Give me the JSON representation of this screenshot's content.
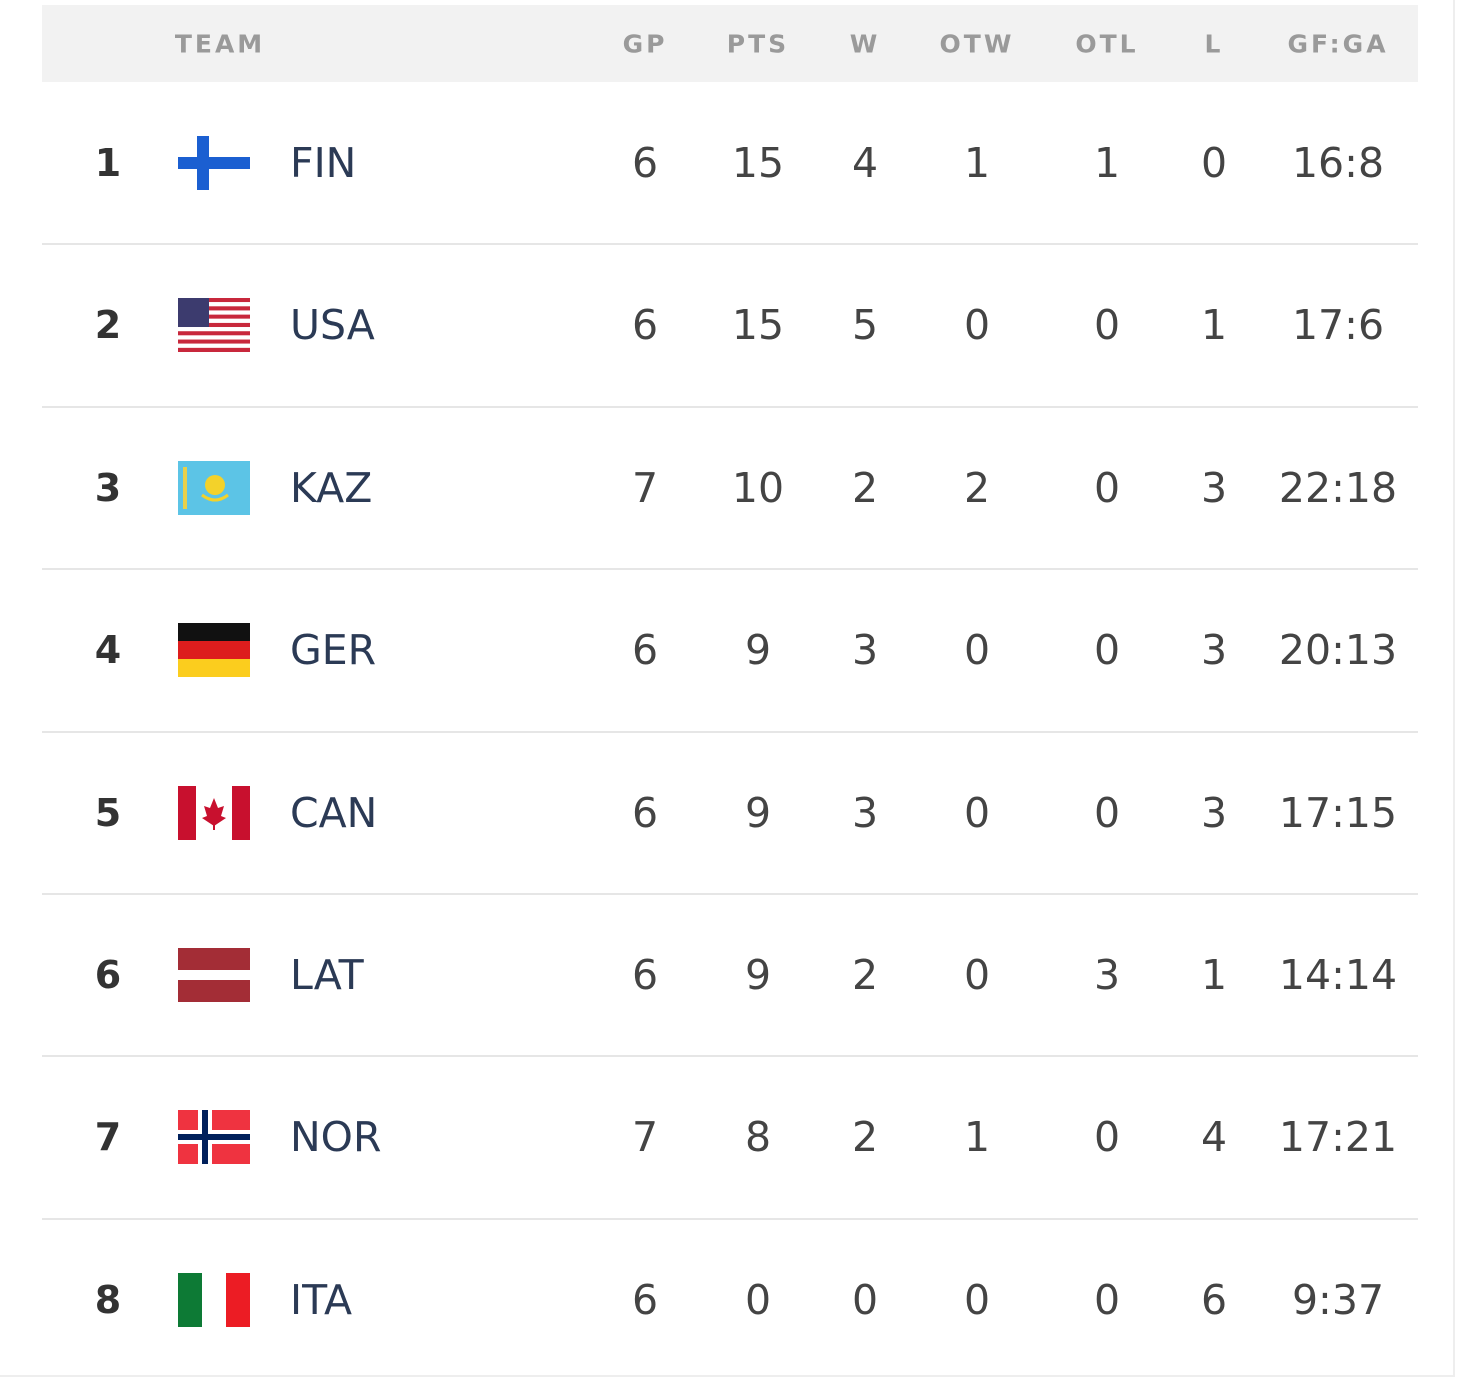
{
  "header": {
    "columns": [
      "TEAM",
      "GP",
      "PTS",
      "W",
      "OTW",
      "OTL",
      "L",
      "GF:GA"
    ]
  },
  "table": {
    "rows": [
      [
        1,
        "FIN",
        6,
        15,
        4,
        1,
        1,
        0,
        "16:8"
      ],
      [
        2,
        "USA",
        6,
        15,
        5,
        0,
        0,
        1,
        "17:6"
      ],
      [
        3,
        "KAZ",
        7,
        10,
        2,
        2,
        0,
        3,
        "22:18"
      ],
      [
        4,
        "GER",
        6,
        9,
        3,
        0,
        0,
        3,
        "20:13"
      ],
      [
        5,
        "CAN",
        6,
        9,
        3,
        0,
        0,
        3,
        "17:15"
      ],
      [
        6,
        "LAT",
        6,
        9,
        2,
        0,
        3,
        1,
        "14:14"
      ],
      [
        7,
        "NOR",
        7,
        8,
        2,
        1,
        0,
        4,
        "17:21"
      ],
      [
        8,
        "ITA",
        6,
        0,
        0,
        0,
        0,
        6,
        "9:37"
      ]
    ]
  }
}
